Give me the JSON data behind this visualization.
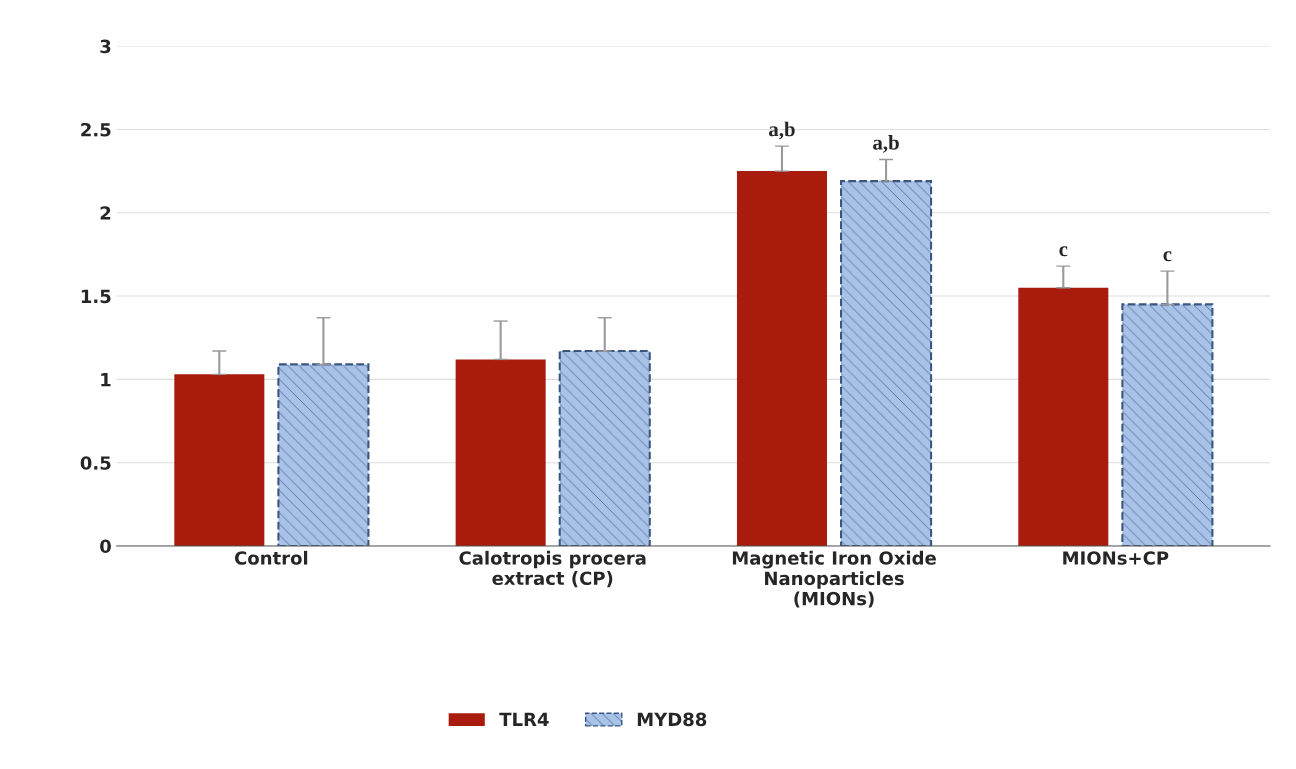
{
  "chart_data": {
    "type": "bar",
    "categories": [
      "Control",
      "Calotropis procera\nextract (CP)",
      "Magnetic Iron Oxide\nNanoparticles\n(MIONs)",
      "MIONs+CP"
    ],
    "series": [
      {
        "name": "TLR4",
        "color": "#a91b0d",
        "values": [
          1.03,
          1.12,
          2.25,
          1.55
        ],
        "value_labels": [
          null,
          null,
          "a,b",
          "c"
        ],
        "errors": [
          [
            1.03,
            1.17
          ],
          [
            1.12,
            1.35
          ],
          [
            2.25,
            2.4
          ],
          [
            1.55,
            1.68
          ]
        ]
      },
      {
        "name": "MYD88",
        "color": "#a9c2e8",
        "values": [
          1.09,
          1.17,
          2.19,
          1.45
        ],
        "value_labels": [
          null,
          null,
          "a,b",
          "c"
        ],
        "errors": [
          [
            1.09,
            1.37
          ],
          [
            1.17,
            1.37
          ],
          [
            2.19,
            2.32
          ],
          [
            1.45,
            1.65
          ]
        ]
      }
    ],
    "ylim": [
      0,
      3
    ],
    "yticks": [
      0,
      0.5,
      1,
      1.5,
      2,
      2.5,
      3
    ],
    "grid": "y",
    "legend": "bottom"
  }
}
